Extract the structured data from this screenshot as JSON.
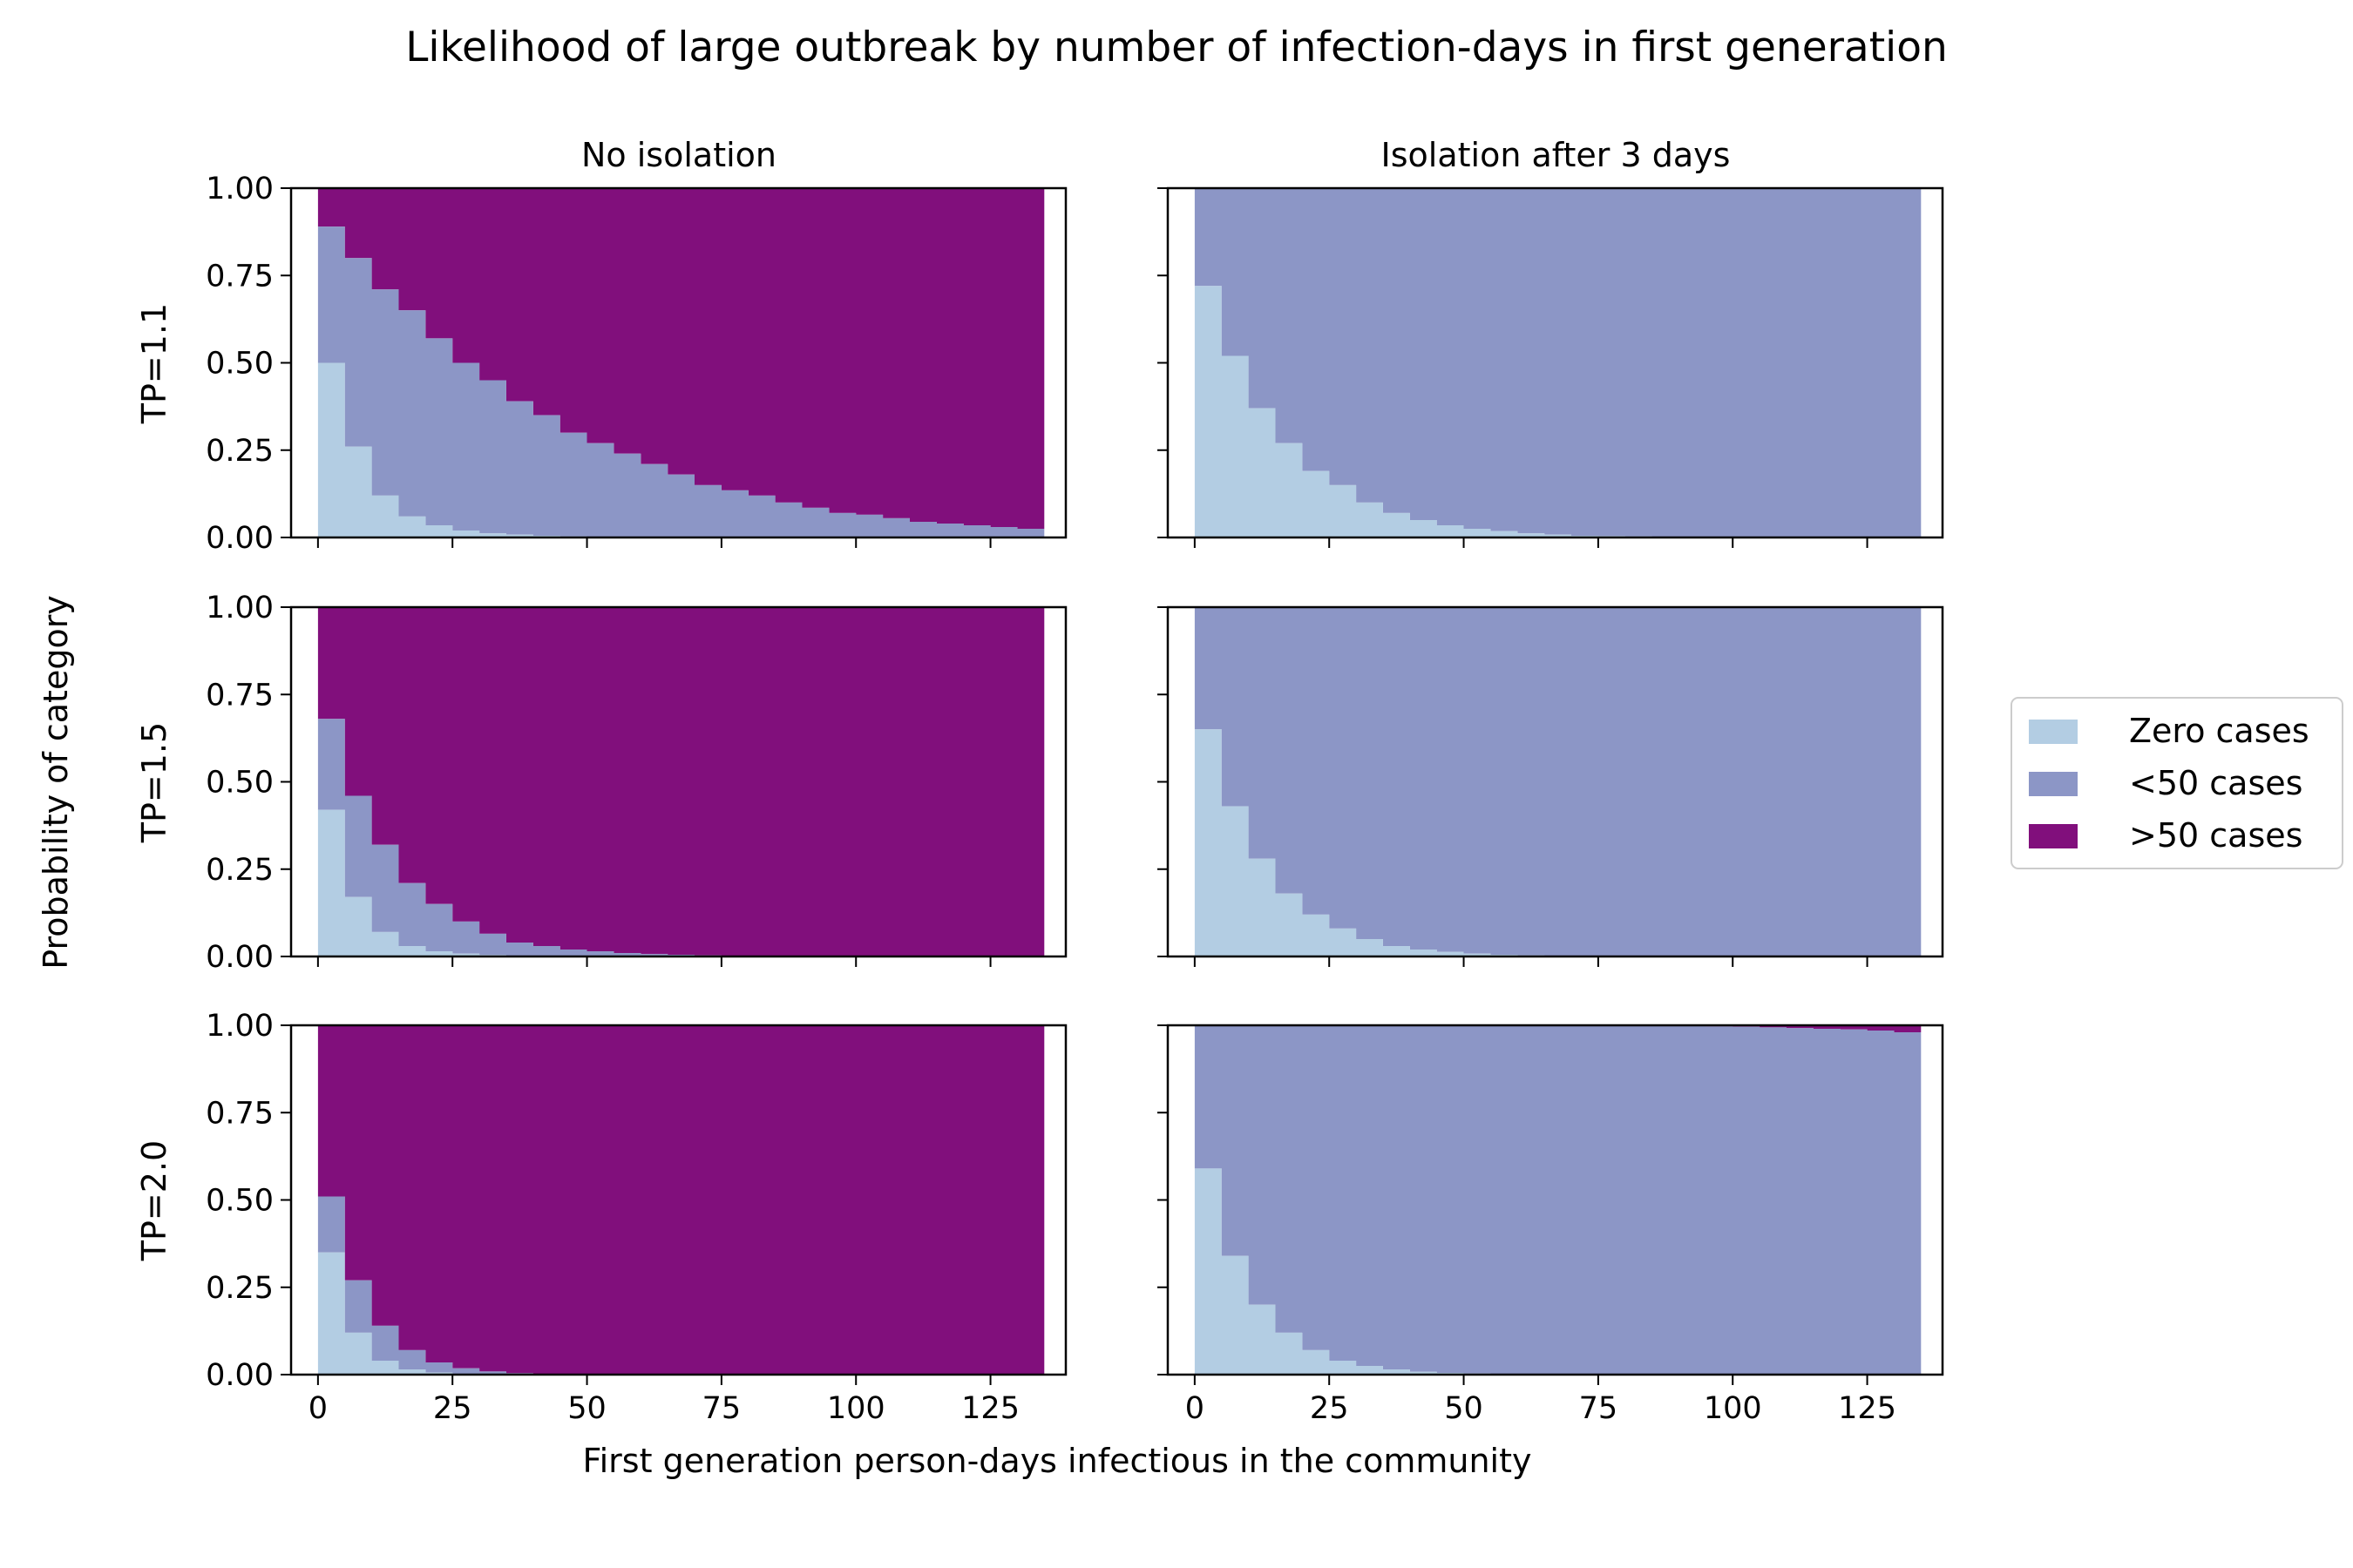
{
  "figure": {
    "title": "Likelihood of large outbreak by number of infection-days in first generation",
    "xlabel": "First generation person-days infectious in the community",
    "ylabel": "Probability of category"
  },
  "columns": [
    "No isolation",
    "Isolation after 3 days"
  ],
  "rows": [
    "TP=1.1",
    "TP=1.5",
    "TP=2.0"
  ],
  "legend": [
    {
      "label": "Zero cases",
      "color": "#b3cde3"
    },
    {
      "label": "<50 cases",
      "color": "#8c96c6"
    },
    {
      "label": ">50 cases",
      "color": "#810f7c"
    }
  ],
  "chart_data": {
    "type": "area",
    "stacked": true,
    "step": true,
    "x": [
      2.5,
      7.5,
      12.5,
      17.5,
      22.5,
      27.5,
      32.5,
      37.5,
      42.5,
      47.5,
      52.5,
      57.5,
      62.5,
      67.5,
      72.5,
      77.5,
      82.5,
      87.5,
      92.5,
      97.5,
      102.5,
      107.5,
      112.5,
      117.5,
      122.5,
      127.5,
      132.5
    ],
    "xlim": [
      -5,
      139
    ],
    "ylim": [
      0,
      1
    ],
    "xticks": [
      0,
      25,
      50,
      75,
      100,
      125
    ],
    "yticks": [
      "0.00",
      "0.25",
      "0.50",
      "0.75",
      "1.00"
    ],
    "series_names": [
      "Zero cases",
      "<50 cases",
      ">50 cases"
    ],
    "panels": [
      {
        "row": "TP=1.1",
        "column": "No isolation",
        "zero": [
          0.5,
          0.26,
          0.12,
          0.06,
          0.035,
          0.02,
          0.012,
          0.008,
          0.005,
          0.003,
          0.002,
          0.001,
          0.001,
          0.0,
          0.0,
          0.0,
          0.0,
          0.0,
          0.0,
          0.0,
          0.0,
          0.0,
          0.0,
          0.0,
          0.0,
          0.0,
          0.0
        ],
        "lt50_cumulative": [
          0.89,
          0.8,
          0.71,
          0.65,
          0.57,
          0.5,
          0.45,
          0.39,
          0.35,
          0.3,
          0.27,
          0.24,
          0.21,
          0.18,
          0.15,
          0.135,
          0.12,
          0.1,
          0.085,
          0.07,
          0.065,
          0.055,
          0.045,
          0.04,
          0.035,
          0.03,
          0.025
        ]
      },
      {
        "row": "TP=1.1",
        "column": "Isolation after 3 days",
        "zero": [
          0.72,
          0.52,
          0.37,
          0.27,
          0.19,
          0.15,
          0.1,
          0.07,
          0.05,
          0.035,
          0.025,
          0.018,
          0.012,
          0.008,
          0.005,
          0.004,
          0.003,
          0.002,
          0.001,
          0.0,
          0.0,
          0.0,
          0.0,
          0.0,
          0.0,
          0.0,
          0.0
        ],
        "lt50_cumulative": [
          1,
          1,
          1,
          1,
          1,
          1,
          1,
          1,
          1,
          1,
          1,
          1,
          1,
          1,
          1,
          1,
          1,
          1,
          1,
          1,
          1,
          1,
          1,
          1,
          1,
          1,
          1
        ]
      },
      {
        "row": "TP=1.5",
        "column": "No isolation",
        "zero": [
          0.42,
          0.17,
          0.07,
          0.03,
          0.015,
          0.008,
          0.004,
          0.002,
          0.001,
          0.0,
          0.0,
          0.0,
          0.0,
          0.0,
          0.0,
          0.0,
          0.0,
          0.0,
          0.0,
          0.0,
          0.0,
          0.0,
          0.0,
          0.0,
          0.0,
          0.0,
          0.0
        ],
        "lt50_cumulative": [
          0.68,
          0.46,
          0.32,
          0.21,
          0.15,
          0.1,
          0.065,
          0.04,
          0.03,
          0.02,
          0.015,
          0.01,
          0.007,
          0.005,
          0.003,
          0.002,
          0.001,
          0.0,
          0.0,
          0.0,
          0.0,
          0.0,
          0.0,
          0.0,
          0.0,
          0.0,
          0.0
        ]
      },
      {
        "row": "TP=1.5",
        "column": "Isolation after 3 days",
        "zero": [
          0.65,
          0.43,
          0.28,
          0.18,
          0.12,
          0.08,
          0.05,
          0.03,
          0.02,
          0.013,
          0.008,
          0.005,
          0.003,
          0.002,
          0.001,
          0.0,
          0.0,
          0.0,
          0.0,
          0.0,
          0.0,
          0.0,
          0.0,
          0.0,
          0.0,
          0.0,
          0.0
        ],
        "lt50_cumulative": [
          1,
          1,
          1,
          1,
          1,
          1,
          1,
          1,
          1,
          1,
          1,
          1,
          1,
          1,
          1,
          1,
          1,
          1,
          1,
          1,
          1,
          1,
          1,
          1,
          1,
          1,
          1
        ]
      },
      {
        "row": "TP=2.0",
        "column": "No isolation",
        "zero": [
          0.35,
          0.12,
          0.04,
          0.015,
          0.006,
          0.002,
          0.001,
          0.0,
          0.0,
          0.0,
          0.0,
          0.0,
          0.0,
          0.0,
          0.0,
          0.0,
          0.0,
          0.0,
          0.0,
          0.0,
          0.0,
          0.0,
          0.0,
          0.0,
          0.0,
          0.0,
          0.0
        ],
        "lt50_cumulative": [
          0.51,
          0.27,
          0.14,
          0.07,
          0.035,
          0.018,
          0.009,
          0.004,
          0.002,
          0.001,
          0.0,
          0.0,
          0.0,
          0.0,
          0.0,
          0.0,
          0.0,
          0.0,
          0.0,
          0.0,
          0.0,
          0.0,
          0.0,
          0.0,
          0.0,
          0.0,
          0.0
        ]
      },
      {
        "row": "TP=2.0",
        "column": "Isolation after 3 days",
        "zero": [
          0.59,
          0.34,
          0.2,
          0.12,
          0.07,
          0.04,
          0.025,
          0.015,
          0.008,
          0.005,
          0.003,
          0.002,
          0.001,
          0.0,
          0.0,
          0.0,
          0.0,
          0.0,
          0.0,
          0.0,
          0.0,
          0.0,
          0.0,
          0.0,
          0.0,
          0.0,
          0.0
        ],
        "lt50_cumulative": [
          1,
          1,
          1,
          1,
          1,
          1,
          1,
          1,
          1,
          1,
          1,
          1,
          1,
          1,
          1,
          1,
          1,
          0.999,
          0.998,
          0.997,
          0.996,
          0.994,
          0.992,
          0.99,
          0.988,
          0.985,
          0.98
        ]
      }
    ]
  }
}
